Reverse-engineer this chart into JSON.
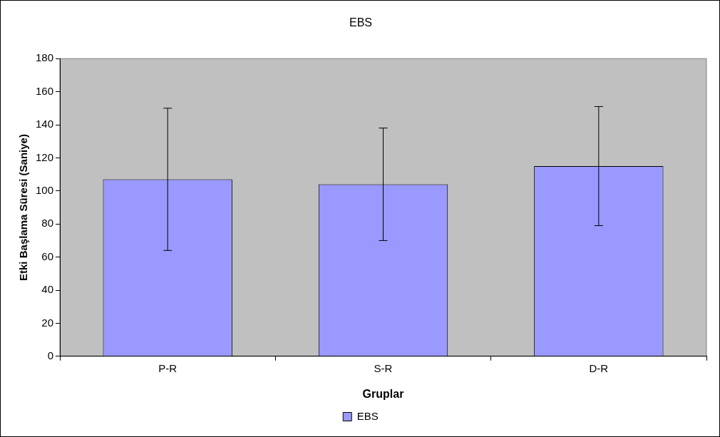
{
  "chart_data": {
    "type": "bar",
    "title": "EBS",
    "xlabel": "Gruplar",
    "ylabel": "Etki Başlama Süresi (Saniye)",
    "categories": [
      "P-R",
      "S-R",
      "D-R"
    ],
    "series": [
      {
        "name": "EBS",
        "color": "#9999ff",
        "values": [
          107,
          104,
          115
        ],
        "errors": [
          43,
          34,
          36
        ]
      }
    ],
    "ylim": [
      0,
      180
    ],
    "yticks": [
      0,
      20,
      40,
      60,
      80,
      100,
      120,
      140,
      160,
      180
    ],
    "grid": false,
    "legend": "bottom"
  }
}
